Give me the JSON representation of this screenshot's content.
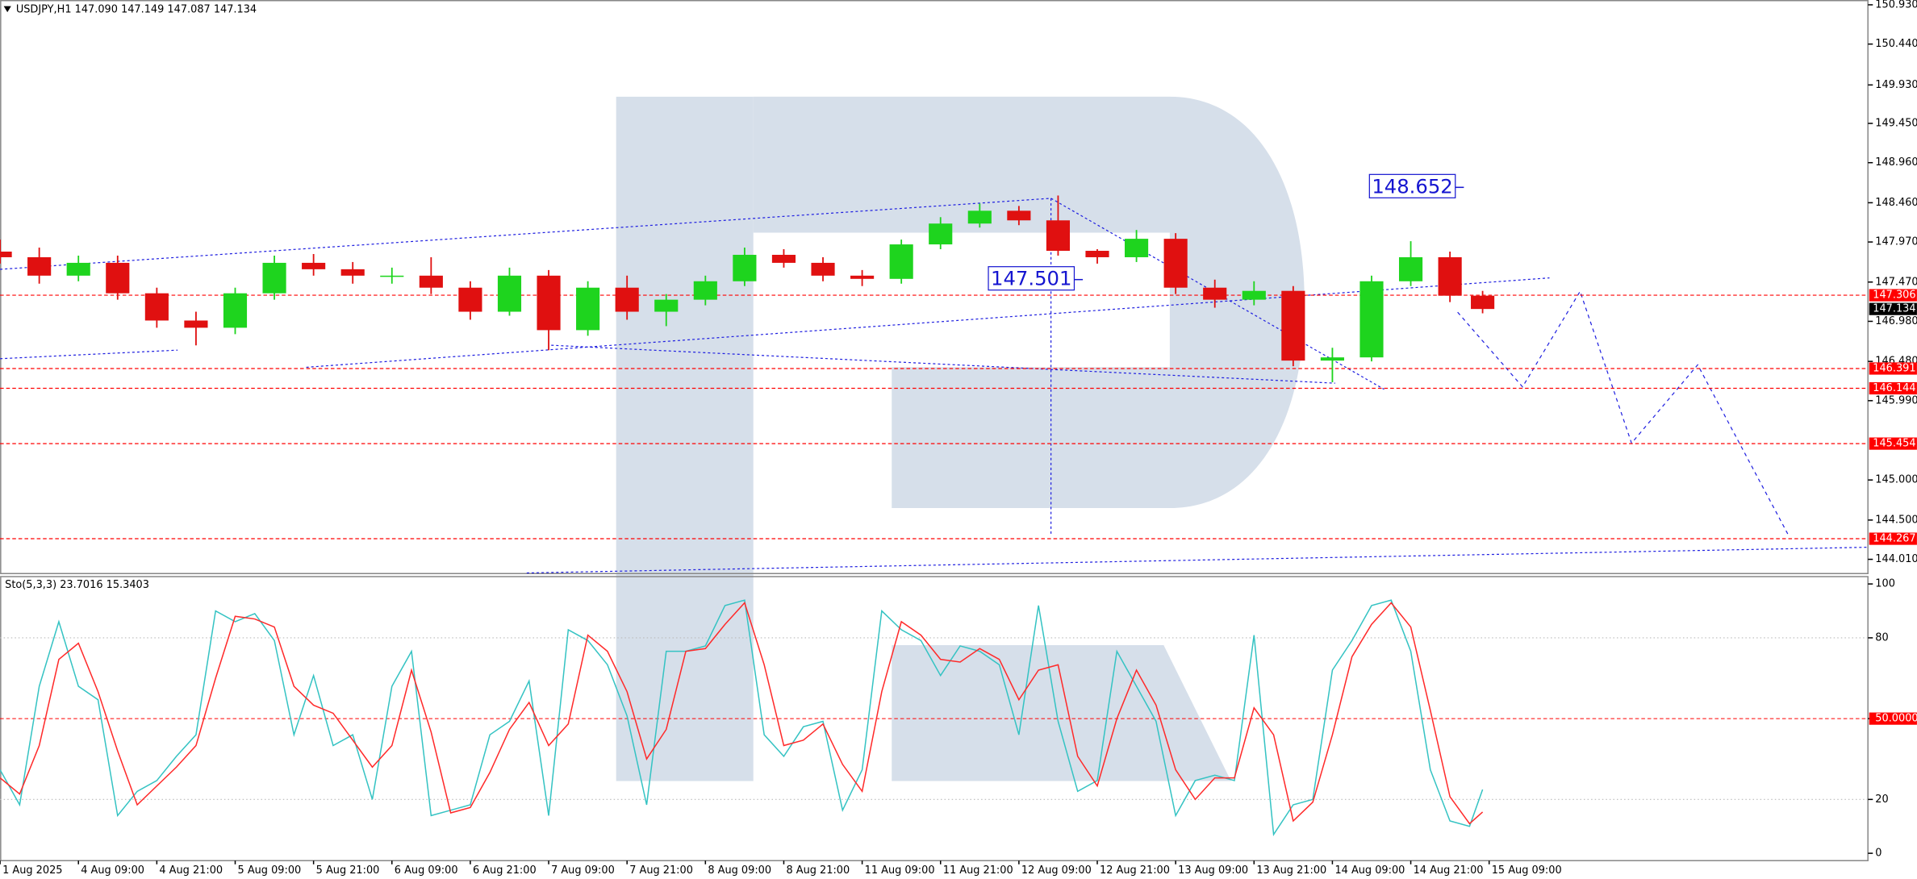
{
  "chart_data": [
    {
      "type": "candlestick",
      "title": "USDJPY,H1  147.090 147.149 147.087 147.134",
      "up_color": "#1ed41e",
      "down_color": "#e01010",
      "x": [
        0,
        6,
        12,
        18,
        24,
        30,
        36,
        42,
        48,
        54,
        60,
        66,
        72,
        78,
        84,
        90,
        96,
        102,
        108,
        114,
        120,
        126,
        132,
        138,
        144,
        150,
        156,
        162,
        168,
        174,
        180,
        186,
        192,
        198,
        204,
        210,
        216,
        222,
        227
      ],
      "open": [
        147.85,
        147.78,
        147.55,
        147.71,
        147.33,
        146.99,
        146.9,
        147.33,
        147.71,
        147.63,
        147.55,
        147.55,
        147.4,
        147.1,
        147.55,
        146.87,
        147.4,
        147.1,
        147.25,
        147.48,
        147.81,
        147.71,
        147.55,
        147.51,
        147.94,
        148.2,
        148.36,
        148.24,
        147.86,
        147.78,
        148.01,
        147.4,
        147.25,
        147.36,
        146.49,
        146.53,
        147.48,
        147.78,
        147.3
      ],
      "high": [
        148.0,
        147.9,
        147.8,
        147.8,
        147.4,
        147.1,
        147.4,
        147.8,
        147.82,
        147.72,
        147.65,
        147.78,
        147.48,
        147.65,
        147.62,
        147.48,
        147.55,
        147.32,
        147.55,
        147.9,
        147.88,
        147.78,
        147.62,
        148.0,
        148.28,
        148.45,
        148.42,
        148.55,
        147.88,
        148.12,
        148.08,
        147.5,
        147.48,
        147.42,
        146.65,
        147.55,
        147.98,
        147.85,
        147.36
      ],
      "low": [
        147.7,
        147.45,
        147.48,
        147.25,
        146.9,
        146.68,
        146.82,
        147.25,
        147.55,
        147.45,
        147.45,
        147.32,
        147.0,
        147.05,
        146.62,
        146.8,
        147.0,
        146.92,
        147.18,
        147.42,
        147.65,
        147.48,
        147.42,
        147.45,
        147.88,
        148.15,
        148.18,
        147.8,
        147.7,
        147.72,
        147.32,
        147.15,
        147.18,
        146.42,
        146.22,
        146.48,
        147.42,
        147.22,
        147.08
      ],
      "close": [
        147.78,
        147.55,
        147.71,
        147.33,
        146.99,
        146.9,
        147.33,
        147.71,
        147.63,
        147.55,
        147.55,
        147.4,
        147.1,
        147.55,
        146.87,
        147.4,
        147.1,
        147.25,
        147.48,
        147.81,
        147.71,
        147.55,
        147.51,
        147.94,
        148.2,
        148.36,
        148.24,
        147.86,
        147.78,
        148.01,
        147.4,
        147.25,
        147.36,
        146.49,
        146.53,
        147.48,
        147.78,
        147.3,
        147.134
      ],
      "xlim": [
        0,
        286
      ],
      "ylim": [
        143.84,
        150.99
      ],
      "yticks": [
        {
          "value": 150.93,
          "label": "150.930"
        },
        {
          "value": 150.44,
          "label": "150.440"
        },
        {
          "value": 149.93,
          "label": "149.930"
        },
        {
          "value": 149.45,
          "label": "149.450"
        },
        {
          "value": 148.96,
          "label": "148.960"
        },
        {
          "value": 148.46,
          "label": "148.460"
        },
        {
          "value": 147.97,
          "label": "147.970"
        },
        {
          "value": 147.47,
          "label": "147.470"
        },
        {
          "value": 146.98,
          "label": "146.980"
        },
        {
          "value": 146.48,
          "label": "146.480"
        },
        {
          "value": 145.99,
          "label": "145.990"
        },
        {
          "value": 145,
          "label": "145.000"
        },
        {
          "value": 144.5,
          "label": "144.500"
        },
        {
          "value": 144.01,
          "label": "144.010"
        }
      ],
      "levels": [
        147.306,
        146.391,
        146.144,
        145.454,
        144.267
      ],
      "level_color": "#ff0000",
      "last_price": 147.134,
      "annotations": [
        148.652,
        147.501
      ],
      "annotation_color": "#1515d0"
    },
    {
      "type": "line",
      "title": "Sto(5,3,3) 23.7016 15.3403",
      "x": [
        0,
        3,
        6,
        9,
        12,
        15,
        18,
        21,
        24,
        27,
        30,
        33,
        36,
        39,
        42,
        45,
        48,
        51,
        54,
        57,
        60,
        63,
        66,
        69,
        72,
        75,
        78,
        81,
        84,
        87,
        90,
        93,
        96,
        99,
        102,
        105,
        108,
        111,
        114,
        117,
        120,
        123,
        126,
        129,
        132,
        135,
        138,
        141,
        144,
        147,
        150,
        153,
        156,
        159,
        162,
        165,
        168,
        171,
        174,
        177,
        180,
        183,
        186,
        189,
        192,
        195,
        198,
        201,
        204,
        207,
        210,
        213,
        216,
        219,
        222,
        225,
        227
      ],
      "series": [
        {
          "color": "#35c3c3",
          "values": [
            31,
            18,
            62,
            86,
            62,
            57,
            14,
            23,
            27,
            36,
            44,
            90,
            86,
            89,
            79,
            44,
            66,
            40,
            44,
            20,
            62,
            75,
            14,
            16,
            18,
            44,
            49,
            64,
            14,
            83,
            79,
            70,
            51,
            18,
            75,
            75,
            77,
            92,
            94,
            44,
            36,
            47,
            49,
            16,
            31,
            90,
            83,
            79,
            66,
            77,
            75,
            70,
            44,
            92,
            49,
            23,
            27,
            75,
            62,
            49,
            14,
            27,
            29,
            27,
            81,
            7,
            18,
            20,
            68,
            79,
            92,
            94,
            75,
            31,
            12,
            10,
            23.7016
          ]
        },
        {
          "color": "#ff2a2a",
          "values": [
            28,
            22,
            40,
            72,
            78,
            60,
            38,
            18,
            25,
            32,
            40,
            65,
            88,
            87,
            84,
            62,
            55,
            52,
            42,
            32,
            40,
            68,
            45,
            15,
            17,
            30,
            46,
            56,
            40,
            48,
            81,
            75,
            60,
            35,
            46,
            75,
            76,
            85,
            93,
            70,
            40,
            42,
            48,
            33,
            23,
            60,
            86,
            81,
            72,
            71,
            76,
            72,
            57,
            68,
            70,
            36,
            25,
            50,
            68,
            55,
            31,
            20,
            28,
            28,
            54,
            44,
            12,
            19,
            44,
            73,
            85,
            93,
            84,
            53,
            21,
            11,
            15.3403
          ]
        }
      ],
      "xlim": [
        0,
        286
      ],
      "ylim": [
        0,
        100
      ],
      "yticks": [
        100,
        80,
        {
          "value": 50,
          "label": "50.0000"
        },
        20,
        0
      ],
      "highlight_color": "#ff0000",
      "xticks": [
        {
          "value": 0,
          "label": "1 Aug 2025"
        },
        {
          "value": 12,
          "label": "4 Aug 09:00"
        },
        {
          "value": 24,
          "label": "4 Aug 21:00"
        },
        {
          "value": 36,
          "label": "5 Aug 09:00"
        },
        {
          "value": 48,
          "label": "5 Aug 21:00"
        },
        {
          "value": 60,
          "label": "6 Aug 09:00"
        },
        {
          "value": 72,
          "label": "6 Aug 21:00"
        },
        {
          "value": 84,
          "label": "7 Aug 09:00"
        },
        {
          "value": 96,
          "label": "7 Aug 21:00"
        },
        {
          "value": 108,
          "label": "8 Aug 09:00"
        },
        {
          "value": 120,
          "label": "8 Aug 21:00"
        },
        {
          "value": 132,
          "label": "11 Aug 09:00"
        },
        {
          "value": 144,
          "label": "11 Aug 21:00"
        },
        {
          "value": 156,
          "label": "12 Aug 09:00"
        },
        {
          "value": 168,
          "label": "12 Aug 21:00"
        },
        {
          "value": 180,
          "label": "13 Aug 09:00"
        },
        {
          "value": 192,
          "label": "13 Aug 21:00"
        },
        {
          "value": 204,
          "label": "14 Aug 09:00"
        },
        {
          "value": 216,
          "label": "14 Aug 21:00"
        },
        {
          "value": 228,
          "label": "15 Aug 09:00"
        }
      ]
    }
  ]
}
